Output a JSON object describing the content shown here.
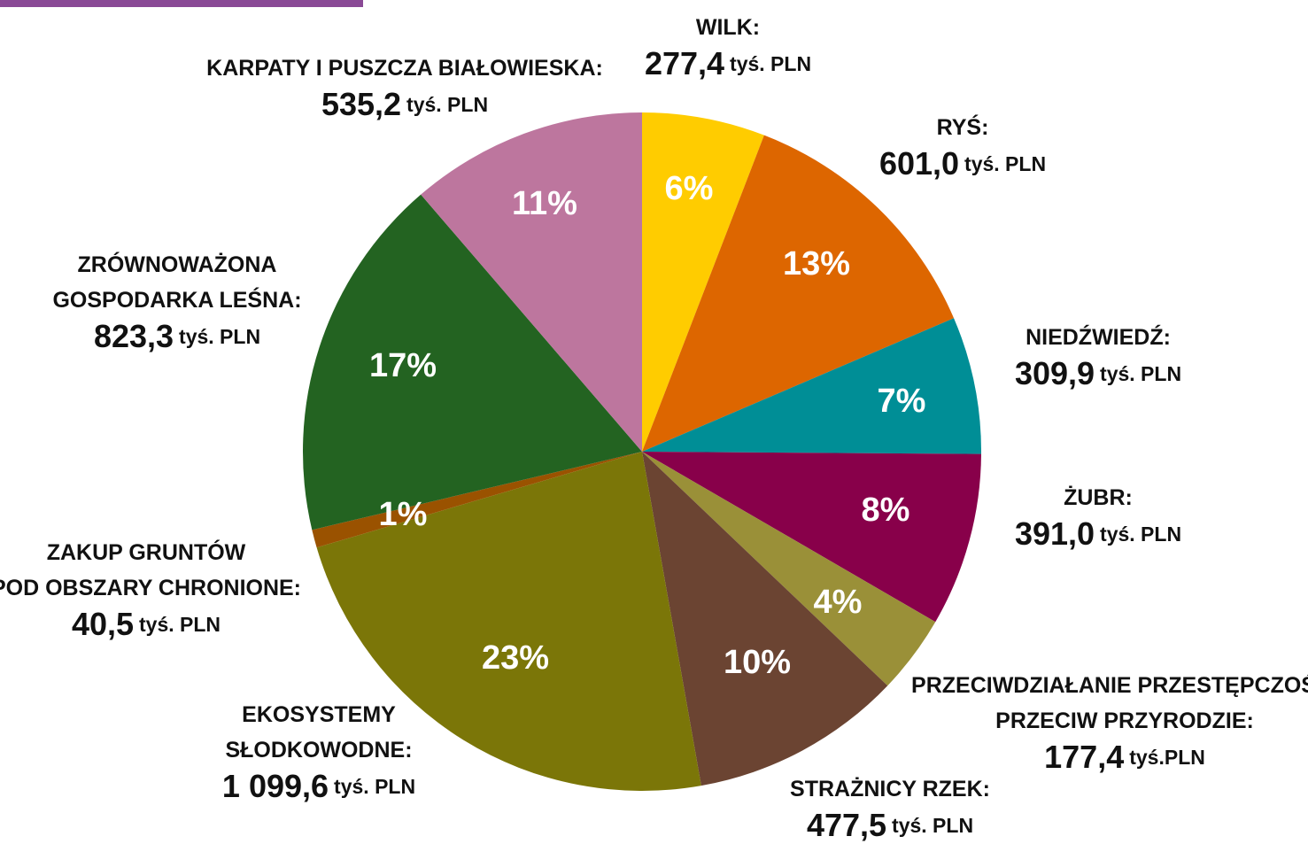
{
  "chart_data": {
    "type": "pie",
    "categories": [
      "WILK:",
      "RYŚ:",
      "NIEDŹWIEDŹ:",
      "ŻUBR:",
      "PRZECIWDZIAŁANIE PRZESTĘPCZOŚCI\nPRZECIW PRZYRODZIE:",
      "STRAŻNICY RZEK:",
      "EKOSYSTEMY\nSŁODKOWODNE:",
      "ZAKUP GRUNTÓW\nPOD OBSZARY CHRONIONE:",
      "ZRÓWNOWAŻONA\nGOSPODARKA LEŚNA:",
      "KARPATY I PUSZCZA BIAŁOWIESKA:"
    ],
    "values": [
      277.4,
      601.0,
      309.9,
      391.0,
      177.4,
      477.5,
      1099.6,
      40.5,
      823.3,
      535.2
    ],
    "value_labels": [
      "277,4",
      "601,0",
      "309,9",
      "391,0",
      "177,4",
      "477,5",
      "1 099,6",
      "40,5",
      "823,3",
      "535,2"
    ],
    "units": [
      "tyś. PLN",
      "tyś. PLN",
      "tyś. PLN",
      "tyś. PLN",
      "tyś.PLN",
      "tyś. PLN",
      "tyś. PLN",
      "tyś. PLN",
      "tyś. PLN",
      "tyś. PLN"
    ],
    "percent_labels": [
      "6%",
      "13%",
      "7%",
      "8%",
      "4%",
      "10%",
      "23%",
      "1%",
      "17%",
      "11%"
    ],
    "colors": [
      "#ffcc00",
      "#dd6600",
      "#008e96",
      "#88004a",
      "#9a9038",
      "#6b4432",
      "#7b7608",
      "#9a5200",
      "#236321",
      "#bd769e"
    ]
  }
}
